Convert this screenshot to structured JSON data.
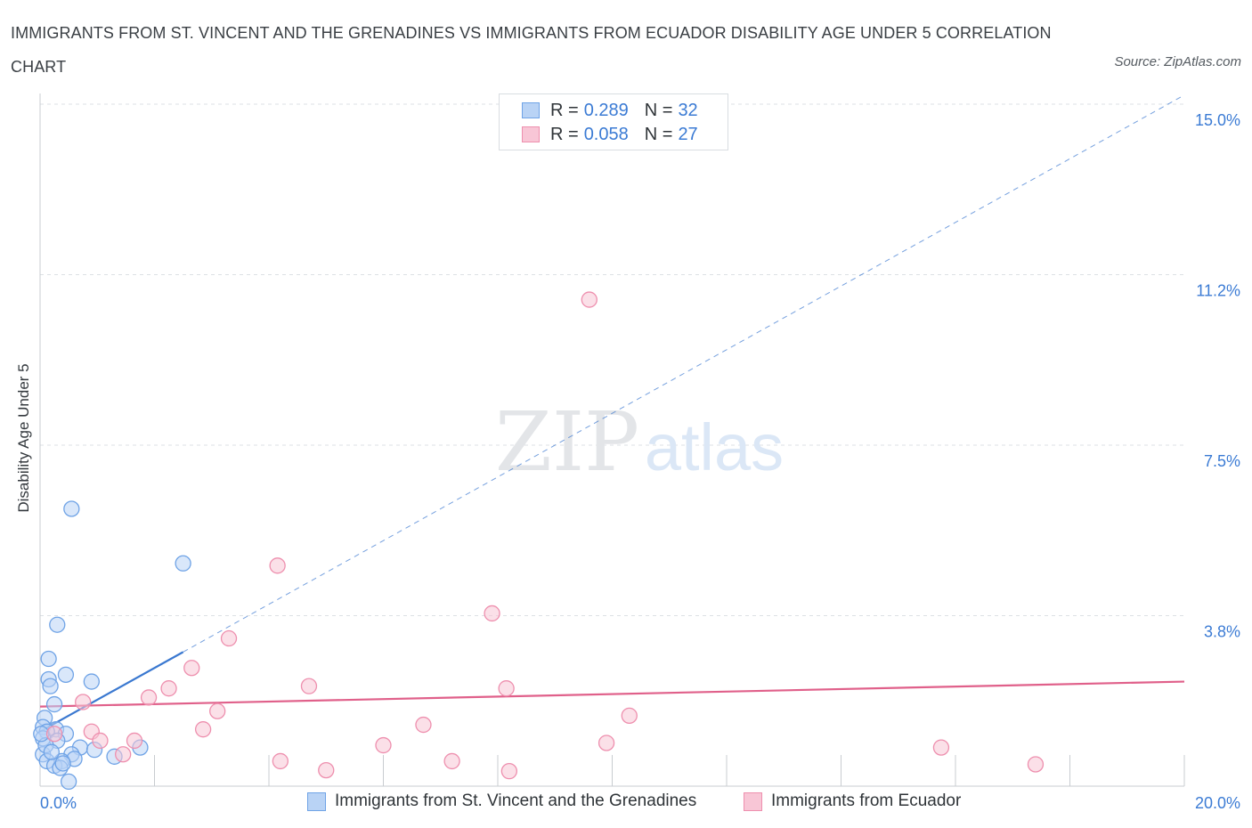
{
  "title": "IMMIGRANTS FROM ST. VINCENT AND THE GRENADINES VS IMMIGRANTS FROM ECUADOR DISABILITY AGE UNDER 5 CORRELATION CHART",
  "source": "Source: ZipAtlas.com",
  "watermark": {
    "zip": "ZIP",
    "atlas": "atlas"
  },
  "legend": [
    {
      "r_label": "R =",
      "r_value": "0.289",
      "n_label": "N =",
      "n_value": "32",
      "color": "#6fa3e6",
      "fill": "#b9d3f5"
    },
    {
      "r_label": "R =",
      "r_value": "0.058",
      "n_label": "N =",
      "n_value": "27",
      "color": "#ee8fae",
      "fill": "#f8c6d6"
    }
  ],
  "chart_data": {
    "type": "scatter",
    "ylabel": "Disability Age Under 5",
    "xlabel": "",
    "xlim": [
      0,
      20
    ],
    "ylim": [
      0,
      15
    ],
    "x_tick_labels": [
      {
        "value": 0,
        "label": "0.0%"
      },
      {
        "value": 20,
        "label": "20.0%"
      }
    ],
    "y_tick_labels": [
      {
        "value": 3.75,
        "label": "3.8%"
      },
      {
        "value": 7.5,
        "label": "7.5%"
      },
      {
        "value": 11.25,
        "label": "11.2%"
      },
      {
        "value": 15,
        "label": "15.0%"
      }
    ],
    "grid": true,
    "series": [
      {
        "name": "Immigrants from St. Vincent and the Grenadines",
        "color": "#6fa3e6",
        "fill": "#b9d3f5",
        "trend_color": "#3a78d0",
        "trend": {
          "x0": 0,
          "y0": 1.2,
          "x1": 2.5,
          "y1": 2.95,
          "dash_to_x": 20
        },
        "points": [
          [
            0.55,
            6.1
          ],
          [
            2.5,
            4.9
          ],
          [
            0.3,
            3.55
          ],
          [
            0.15,
            2.8
          ],
          [
            0.45,
            2.45
          ],
          [
            0.15,
            2.35
          ],
          [
            0.9,
            2.3
          ],
          [
            0.18,
            2.2
          ],
          [
            0.25,
            1.8
          ],
          [
            0.08,
            1.5
          ],
          [
            0.05,
            1.3
          ],
          [
            0.28,
            1.25
          ],
          [
            0.12,
            1.2
          ],
          [
            0.45,
            1.15
          ],
          [
            0.05,
            1.05
          ],
          [
            0.3,
            1.0
          ],
          [
            0.7,
            0.85
          ],
          [
            0.95,
            0.8
          ],
          [
            1.75,
            0.85
          ],
          [
            0.05,
            0.7
          ],
          [
            0.55,
            0.7
          ],
          [
            1.3,
            0.65
          ],
          [
            0.6,
            0.6
          ],
          [
            0.12,
            0.55
          ],
          [
            0.38,
            0.55
          ],
          [
            0.25,
            0.45
          ],
          [
            0.35,
            0.4
          ],
          [
            0.5,
            0.1
          ],
          [
            0.1,
            0.9
          ],
          [
            0.2,
            0.75
          ],
          [
            0.4,
            0.5
          ],
          [
            0.02,
            1.15
          ]
        ]
      },
      {
        "name": "Immigrants from Ecuador",
        "color": "#ee8fae",
        "fill": "#f8c6d6",
        "trend_color": "#e0608a",
        "trend": {
          "x0": 0,
          "y0": 1.75,
          "x1": 20,
          "y1": 2.3
        },
        "points": [
          [
            9.6,
            10.7
          ],
          [
            4.15,
            4.85
          ],
          [
            7.9,
            3.8
          ],
          [
            3.3,
            3.25
          ],
          [
            2.65,
            2.6
          ],
          [
            4.7,
            2.2
          ],
          [
            8.15,
            2.15
          ],
          [
            2.25,
            2.15
          ],
          [
            1.9,
            1.95
          ],
          [
            0.75,
            1.85
          ],
          [
            3.1,
            1.65
          ],
          [
            10.3,
            1.55
          ],
          [
            6.7,
            1.35
          ],
          [
            2.85,
            1.25
          ],
          [
            0.9,
            1.2
          ],
          [
            0.25,
            1.15
          ],
          [
            1.05,
            1.0
          ],
          [
            1.65,
            1.0
          ],
          [
            9.9,
            0.95
          ],
          [
            6.0,
            0.9
          ],
          [
            15.75,
            0.85
          ],
          [
            1.45,
            0.7
          ],
          [
            4.2,
            0.55
          ],
          [
            7.2,
            0.55
          ],
          [
            17.4,
            0.48
          ],
          [
            5.0,
            0.35
          ],
          [
            8.2,
            0.33
          ]
        ]
      }
    ]
  }
}
